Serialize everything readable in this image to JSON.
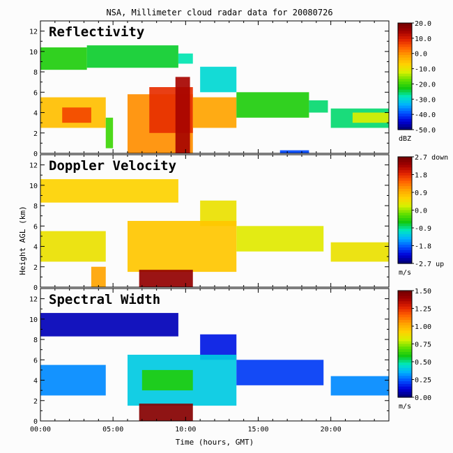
{
  "title": "NSA, Millimeter cloud radar data for 20080726",
  "ylabel": "Height AGL (km)",
  "xlabel": "Time (hours, GMT)",
  "chart_data": [
    {
      "type": "heatmap",
      "title": "Reflectivity",
      "x_ticks": [
        "00:00",
        "05:00",
        "10:00",
        "15:00",
        "20:00"
      ],
      "x_range_hours": [
        0,
        24
      ],
      "ylim": [
        0,
        13
      ],
      "y_ticks": [
        0,
        2,
        4,
        6,
        8,
        10,
        12
      ],
      "colorbar": {
        "ticks": [
          "20.0",
          "10.0",
          "0.0",
          "-10.0",
          "-20.0",
          "-30.0",
          "-40.0",
          "-50.0"
        ],
        "unit": "dBZ",
        "range": [
          -50,
          20
        ]
      },
      "layers": [
        {
          "start": 0.0,
          "end": 3.2,
          "bottom": 8.2,
          "top": 10.4,
          "value": -22
        },
        {
          "start": 3.2,
          "end": 9.5,
          "bottom": 8.4,
          "top": 10.6,
          "value": -24
        },
        {
          "start": 9.5,
          "end": 10.5,
          "bottom": 8.8,
          "top": 9.8,
          "value": -28
        },
        {
          "start": 11.0,
          "end": 13.5,
          "bottom": 6.0,
          "top": 8.5,
          "value": -30
        },
        {
          "start": 0.0,
          "end": 4.5,
          "bottom": 2.5,
          "top": 5.5,
          "value": -5
        },
        {
          "start": 1.5,
          "end": 3.5,
          "bottom": 3.0,
          "top": 4.5,
          "value": 6
        },
        {
          "start": 4.5,
          "end": 5.0,
          "bottom": 0.5,
          "top": 3.5,
          "value": -20
        },
        {
          "start": 6.0,
          "end": 10.5,
          "bottom": 0.0,
          "top": 5.8,
          "value": 0
        },
        {
          "start": 7.5,
          "end": 10.5,
          "bottom": 2.0,
          "top": 6.5,
          "value": 8
        },
        {
          "start": 9.3,
          "end": 10.3,
          "bottom": 0.0,
          "top": 7.5,
          "value": 14
        },
        {
          "start": 10.5,
          "end": 13.5,
          "bottom": 2.5,
          "top": 5.5,
          "value": -2
        },
        {
          "start": 13.5,
          "end": 18.5,
          "bottom": 3.5,
          "top": 6.0,
          "value": -22
        },
        {
          "start": 18.5,
          "end": 19.8,
          "bottom": 4.0,
          "top": 5.2,
          "value": -26
        },
        {
          "start": 20.0,
          "end": 24.0,
          "bottom": 2.5,
          "top": 4.4,
          "value": -26
        },
        {
          "start": 21.5,
          "end": 24.0,
          "bottom": 3.0,
          "top": 4.0,
          "value": -12
        },
        {
          "start": 16.5,
          "end": 18.5,
          "bottom": 0.0,
          "top": 0.3,
          "value": -40
        }
      ]
    },
    {
      "type": "heatmap",
      "title": "Doppler Velocity",
      "x_ticks": [
        "00:00",
        "05:00",
        "10:00",
        "15:00",
        "20:00"
      ],
      "x_range_hours": [
        0,
        24
      ],
      "ylim": [
        0,
        13
      ],
      "y_ticks": [
        0,
        2,
        4,
        6,
        8,
        10,
        12
      ],
      "colorbar": {
        "ticks": [
          "2.7 down",
          "1.8",
          "0.9",
          "0.0",
          "-0.9",
          "-1.8",
          "-2.7 up"
        ],
        "unit": "m/s",
        "range": [
          -2.7,
          2.7
        ]
      },
      "layers": [
        {
          "start": 0.0,
          "end": 9.5,
          "bottom": 8.3,
          "top": 10.6,
          "value": 0.6
        },
        {
          "start": 11.0,
          "end": 13.5,
          "bottom": 6.0,
          "top": 8.5,
          "value": 0.4
        },
        {
          "start": 0.0,
          "end": 4.5,
          "bottom": 2.5,
          "top": 5.5,
          "value": 0.4
        },
        {
          "start": 6.0,
          "end": 13.5,
          "bottom": 1.5,
          "top": 6.5,
          "value": 0.7
        },
        {
          "start": 13.5,
          "end": 19.5,
          "bottom": 3.5,
          "top": 6.0,
          "value": 0.3
        },
        {
          "start": 20.0,
          "end": 24.0,
          "bottom": 2.5,
          "top": 4.4,
          "value": 0.4
        },
        {
          "start": 6.8,
          "end": 10.5,
          "bottom": 0.0,
          "top": 1.7,
          "value": 2.4
        },
        {
          "start": 3.5,
          "end": 4.5,
          "bottom": 0.0,
          "top": 2.0,
          "value": 1.0
        }
      ]
    },
    {
      "type": "heatmap",
      "title": "Spectral Width",
      "x_ticks": [
        "00:00",
        "05:00",
        "10:00",
        "15:00",
        "20:00"
      ],
      "x_range_hours": [
        0,
        24
      ],
      "ylim": [
        0,
        13
      ],
      "y_ticks": [
        0,
        2,
        4,
        6,
        8,
        10,
        12
      ],
      "colorbar": {
        "ticks": [
          "1.50",
          "1.25",
          "1.00",
          "0.75",
          "0.50",
          "0.25",
          "0.00"
        ],
        "unit": "m/s",
        "range": [
          0,
          1.5
        ]
      },
      "layers": [
        {
          "start": 0.0,
          "end": 9.5,
          "bottom": 8.3,
          "top": 10.6,
          "value": 0.08
        },
        {
          "start": 11.0,
          "end": 13.5,
          "bottom": 6.0,
          "top": 8.5,
          "value": 0.15
        },
        {
          "start": 0.0,
          "end": 4.5,
          "bottom": 2.5,
          "top": 5.5,
          "value": 0.3
        },
        {
          "start": 6.0,
          "end": 13.5,
          "bottom": 1.5,
          "top": 6.5,
          "value": 0.4
        },
        {
          "start": 7.0,
          "end": 10.5,
          "bottom": 3.0,
          "top": 5.0,
          "value": 0.6
        },
        {
          "start": 13.5,
          "end": 19.5,
          "bottom": 3.5,
          "top": 6.0,
          "value": 0.2
        },
        {
          "start": 20.0,
          "end": 24.0,
          "bottom": 2.5,
          "top": 4.4,
          "value": 0.3
        },
        {
          "start": 6.8,
          "end": 10.5,
          "bottom": 0.0,
          "top": 1.7,
          "value": 1.45
        }
      ]
    }
  ]
}
